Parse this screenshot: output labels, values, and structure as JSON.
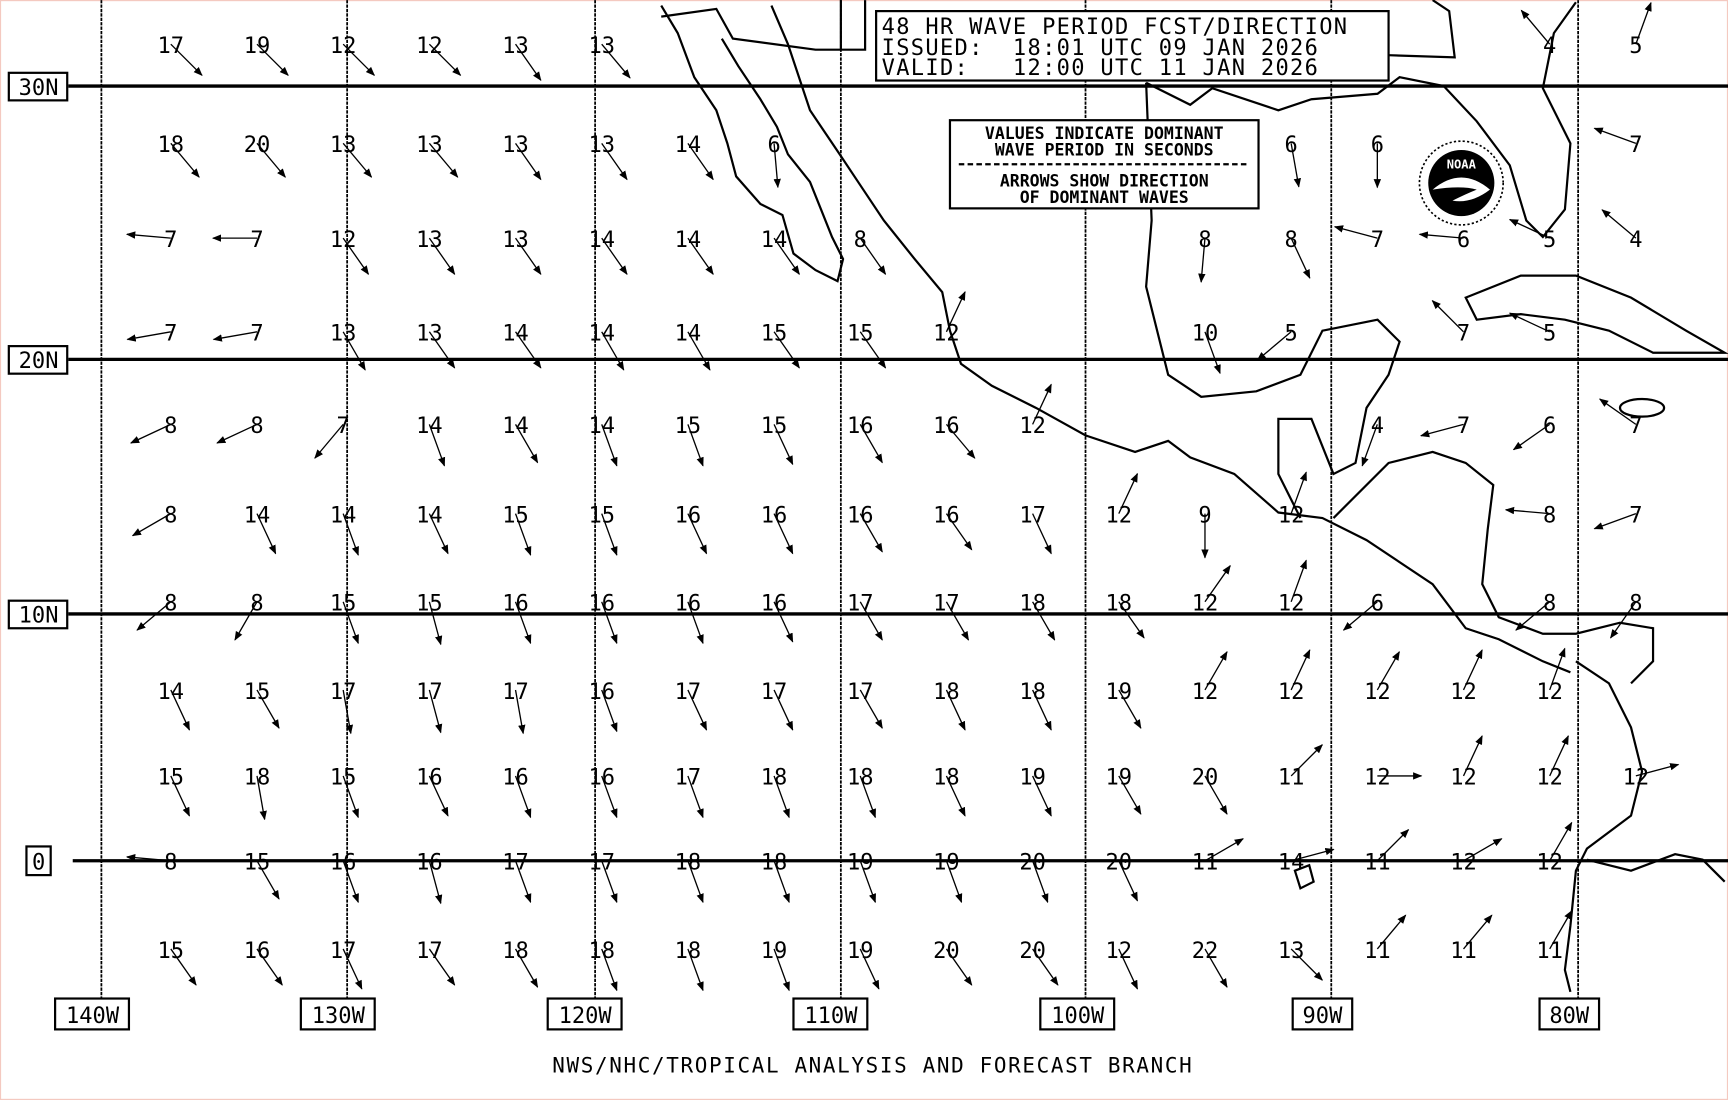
{
  "title_box": {
    "line1": "48 HR WAVE PERIOD FCST/DIRECTION",
    "line2": "ISSUED:  18:01 UTC 09 JAN 2026",
    "line3": "VALID:   12:00 UTC 11 JAN 2026"
  },
  "legend_box": {
    "line1": "VALUES INDICATE DOMINANT",
    "line2": "WAVE PERIOD IN SECONDS",
    "line3": "ARROWS SHOW DIRECTION",
    "line4": "OF DOMINANT WAVES"
  },
  "logo": {
    "text": "NOAA",
    "icon": "noaa-logo"
  },
  "lat_labels": [
    "30N",
    "20N",
    "10N",
    "0"
  ],
  "lon_labels": [
    "140W",
    "130W",
    "120W",
    "110W",
    "100W",
    "90W",
    "80W"
  ],
  "footer": "NWS/NHC/TROPICAL ANALYSIS AND FORECAST BRANCH",
  "grid": {
    "note_format": "[period_seconds, arrow_direction_degrees]",
    "rows": [
      [
        [
          "17",
          135
        ],
        [
          "19",
          135
        ],
        [
          "12",
          135
        ],
        [
          "12",
          135
        ],
        [
          "13",
          145
        ],
        [
          "13",
          140
        ],
        null,
        null,
        null,
        null,
        null,
        null,
        null,
        null,
        null,
        null,
        [
          "4",
          320
        ],
        [
          "5",
          20
        ]
      ],
      [
        [
          "18",
          140
        ],
        [
          "20",
          140
        ],
        [
          "13",
          140
        ],
        [
          "13",
          140
        ],
        [
          "13",
          145
        ],
        [
          "13",
          145
        ],
        [
          "14",
          145
        ],
        [
          "6",
          175
        ],
        null,
        null,
        null,
        null,
        null,
        [
          "6",
          170
        ],
        [
          "6",
          180
        ],
        null,
        null,
        [
          "7",
          290
        ]
      ],
      [
        [
          "7",
          275
        ],
        [
          "7",
          270
        ],
        [
          "12",
          145
        ],
        [
          "13",
          145
        ],
        [
          "13",
          145
        ],
        [
          "14",
          145
        ],
        [
          "14",
          145
        ],
        [
          "14",
          145
        ],
        [
          "8",
          145
        ],
        null,
        null,
        null,
        [
          "8",
          185
        ],
        [
          "8",
          155
        ],
        [
          "7",
          285
        ],
        [
          "6",
          275
        ],
        [
          "5",
          295
        ],
        [
          "4",
          310
        ]
      ],
      [
        [
          "7",
          260
        ],
        [
          "7",
          260
        ],
        [
          "13",
          150
        ],
        [
          "13",
          145
        ],
        [
          "14",
          145
        ],
        [
          "14",
          150
        ],
        [
          "14",
          150
        ],
        [
          "15",
          145
        ],
        [
          "15",
          145
        ],
        [
          "12",
          25
        ],
        null,
        null,
        [
          "10",
          160
        ],
        [
          "5",
          230
        ],
        null,
        [
          "7",
          315
        ],
        [
          "5",
          295
        ],
        null
      ],
      [
        [
          "8",
          245
        ],
        [
          "8",
          245
        ],
        [
          "7",
          220
        ],
        [
          "14",
          160
        ],
        [
          "14",
          150
        ],
        [
          "14",
          160
        ],
        [
          "15",
          160
        ],
        [
          "15",
          155
        ],
        [
          "16",
          150
        ],
        [
          "16",
          140
        ],
        [
          "12",
          25
        ],
        null,
        null,
        null,
        [
          "4",
          200
        ],
        [
          "7",
          255
        ],
        [
          "6",
          235
        ],
        [
          "7",
          305
        ]
      ],
      [
        [
          "8",
          240
        ],
        [
          "14",
          155
        ],
        [
          "14",
          160
        ],
        [
          "14",
          155
        ],
        [
          "15",
          160
        ],
        [
          "15",
          160
        ],
        [
          "16",
          155
        ],
        [
          "16",
          155
        ],
        [
          "16",
          150
        ],
        [
          "16",
          145
        ],
        [
          "17",
          155
        ],
        [
          "12",
          25
        ],
        [
          "9",
          180
        ],
        [
          "12",
          20
        ],
        null,
        null,
        [
          "8",
          275
        ],
        [
          "7",
          250
        ]
      ],
      [
        [
          "8",
          230
        ],
        [
          "8",
          210
        ],
        [
          "15",
          160
        ],
        [
          "15",
          165
        ],
        [
          "16",
          160
        ],
        [
          "16",
          160
        ],
        [
          "16",
          160
        ],
        [
          "16",
          155
        ],
        [
          "17",
          150
        ],
        [
          "17",
          150
        ],
        [
          "18",
          150
        ],
        [
          "18",
          145
        ],
        [
          "12",
          35
        ],
        [
          "12",
          20
        ],
        [
          "6",
          230
        ],
        null,
        [
          "8",
          230
        ],
        [
          "8",
          215
        ]
      ],
      [
        [
          "14",
          155
        ],
        [
          "15",
          150
        ],
        [
          "17",
          170
        ],
        [
          "17",
          165
        ],
        [
          "17",
          170
        ],
        [
          "16",
          160
        ],
        [
          "17",
          155
        ],
        [
          "17",
          155
        ],
        [
          "17",
          150
        ],
        [
          "18",
          155
        ],
        [
          "18",
          155
        ],
        [
          "19",
          150
        ],
        [
          "12",
          30
        ],
        [
          "12",
          25
        ],
        [
          "12",
          30
        ],
        [
          "12",
          25
        ],
        [
          "12",
          20
        ],
        null
      ],
      [
        [
          "15",
          155
        ],
        [
          "18",
          170
        ],
        [
          "15",
          160
        ],
        [
          "16",
          155
        ],
        [
          "16",
          160
        ],
        [
          "16",
          160
        ],
        [
          "17",
          160
        ],
        [
          "18",
          160
        ],
        [
          "18",
          160
        ],
        [
          "18",
          155
        ],
        [
          "19",
          155
        ],
        [
          "19",
          150
        ],
        [
          "20",
          150
        ],
        [
          "11",
          45
        ],
        [
          "12",
          90
        ],
        [
          "12",
          25
        ],
        [
          "12",
          25
        ],
        [
          "12",
          75
        ]
      ],
      [
        [
          "8",
          275
        ],
        [
          "15",
          150
        ],
        [
          "16",
          160
        ],
        [
          "16",
          165
        ],
        [
          "17",
          160
        ],
        [
          "17",
          160
        ],
        [
          "18",
          160
        ],
        [
          "18",
          160
        ],
        [
          "19",
          160
        ],
        [
          "19",
          160
        ],
        [
          "20",
          160
        ],
        [
          "20",
          155
        ],
        [
          "11",
          60
        ],
        [
          "14",
          75
        ],
        [
          "11",
          45
        ],
        [
          "12",
          60
        ],
        [
          "12",
          30
        ],
        null
      ],
      [
        [
          "15",
          145
        ],
        [
          "16",
          145
        ],
        [
          "17",
          155
        ],
        [
          "17",
          145
        ],
        [
          "18",
          150
        ],
        [
          "18",
          160
        ],
        [
          "18",
          160
        ],
        [
          "19",
          160
        ],
        [
          "19",
          155
        ],
        [
          "20",
          145
        ],
        [
          "20",
          145
        ],
        [
          "12",
          155
        ],
        [
          "22",
          150
        ],
        [
          "13",
          135
        ],
        [
          "11",
          40
        ],
        [
          "11",
          40
        ],
        [
          "11",
          30
        ],
        null
      ]
    ]
  }
}
